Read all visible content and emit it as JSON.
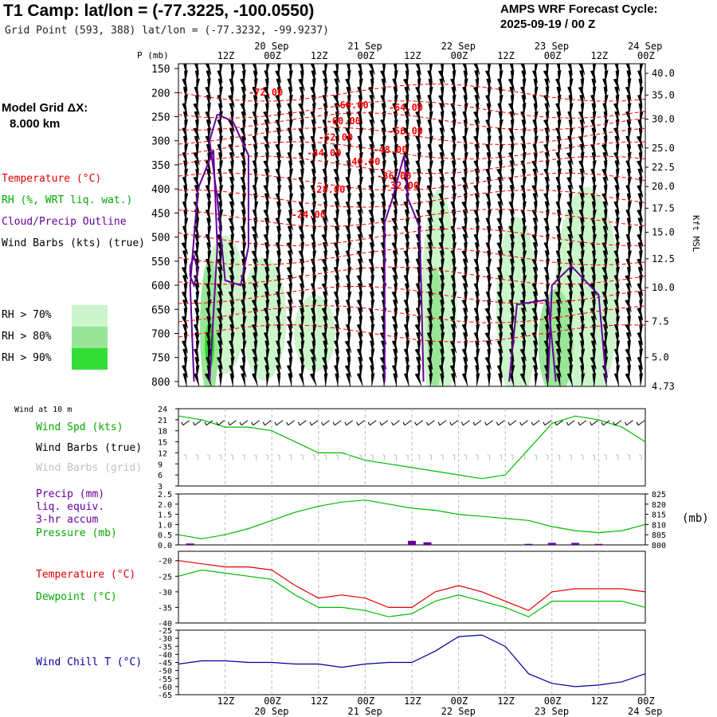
{
  "header": {
    "title": "T1 Camp:  lat/lon = (-77.3225, -100.0550)",
    "subtitle": "Grid Point (593, 388) lat/lon = (-77.3232, -99.9237)",
    "cycle_title": "AMPS WRF Forecast Cycle:",
    "cycle_value": "2025-09-19 / 00  Z"
  },
  "model_grid": {
    "label": "Model Grid ΔX:",
    "value": "8.000 km"
  },
  "legend": {
    "temperature": "Temperature (°C)",
    "rh": "RH (%, WRT liq. wat.)",
    "cloud": "Cloud/Precip Outline",
    "barbs": "Wind Barbs (kts) (true)",
    "rh70": "RH > 70%",
    "rh80": "RH > 80%",
    "rh90": "RH > 90%"
  },
  "colors": {
    "temperature": "#ff0000",
    "rh": "#00bb00",
    "cloud": "#660099",
    "wind_chill": "#000099",
    "grid": "#bbbbbb",
    "rh70": "#ccf5cc",
    "rh80": "#99e699",
    "rh90": "#33dd33"
  },
  "chart_data": [
    {
      "type": "contour",
      "name": "time-height cross section",
      "ylabel": "P (mb)",
      "y2label": "Kft MSL",
      "p_ticks": [
        150,
        200,
        250,
        300,
        350,
        400,
        450,
        500,
        550,
        600,
        650,
        700,
        750,
        800
      ],
      "height_ticks": [
        {
          "label": "40.0",
          "p": 160
        },
        {
          "label": "35.0",
          "p": 205
        },
        {
          "label": "30.0",
          "p": 255
        },
        {
          "label": "25.0",
          "p": 315
        },
        {
          "label": "22.5",
          "p": 355
        },
        {
          "label": "20.0",
          "p": 395
        },
        {
          "label": "17.5",
          "p": 440
        },
        {
          "label": "15.0",
          "p": 490
        },
        {
          "label": "12.5",
          "p": 545
        },
        {
          "label": "10.0",
          "p": 605
        },
        {
          "label": "7.5",
          "p": 675
        },
        {
          "label": "5.0",
          "p": 750
        }
      ],
      "surface_height_label": "4.73",
      "temperature_contours": [
        {
          "label": "-72.00",
          "hour": 18,
          "p": 206
        },
        {
          "label": "-68.00",
          "hour": 40,
          "p": 233
        },
        {
          "label": "-64.00",
          "hour": 54,
          "p": 238
        },
        {
          "label": "-60.00",
          "hour": 38,
          "p": 266
        },
        {
          "label": "-56.00",
          "hour": 54,
          "p": 286
        },
        {
          "label": "-52.00",
          "hour": 36,
          "p": 300
        },
        {
          "label": "-48.00",
          "hour": 50,
          "p": 325
        },
        {
          "label": "-44.00",
          "hour": 33,
          "p": 332
        },
        {
          "label": "-40.00",
          "hour": 43,
          "p": 350
        },
        {
          "label": "-36.00",
          "hour": 51,
          "p": 380
        },
        {
          "label": "-32.00",
          "hour": 53,
          "p": 400
        },
        {
          "label": "-28.00",
          "hour": 34,
          "p": 408
        },
        {
          "label": "-24.00",
          "hour": 29,
          "p": 460
        }
      ]
    },
    {
      "type": "line",
      "name": "Wind at 10 m",
      "title": "Wind at 10 m",
      "legend": [
        "Wind Spd (kts)",
        "Wind Barbs (true)",
        "Wind Barbs (grid)"
      ],
      "ylim": [
        3,
        24
      ],
      "yticks": [
        3,
        6,
        9,
        12,
        15,
        18,
        21,
        24
      ],
      "hours": [
        0,
        6,
        12,
        18,
        24,
        30,
        36,
        42,
        48,
        54,
        60,
        66,
        72,
        78,
        84,
        90,
        96,
        102,
        108,
        114,
        120
      ],
      "values": [
        22,
        21,
        19,
        19,
        18,
        15,
        12,
        12,
        10,
        9,
        8,
        7,
        6,
        5,
        6,
        13,
        20,
        22,
        21,
        19,
        15
      ]
    },
    {
      "type": "line",
      "name": "Precip and Pressure",
      "legend": [
        "Precip (mm)",
        "liq. equiv.",
        "3-hr accum",
        "Pressure (mb)"
      ],
      "ylim": [
        0,
        2.5
      ],
      "yticks": [
        "0.0",
        "0.5",
        "1.0",
        "1.5",
        "2.0",
        "2.5"
      ],
      "y2lim": [
        800,
        825
      ],
      "y2ticks": [
        800,
        805,
        810,
        815,
        820,
        825
      ],
      "y2label": "(mb)",
      "hours": [
        0,
        6,
        12,
        18,
        24,
        30,
        36,
        42,
        48,
        54,
        60,
        66,
        72,
        78,
        84,
        90,
        96,
        102,
        108,
        114,
        120
      ],
      "pressure": [
        805,
        803,
        805,
        808,
        812,
        816,
        819,
        821,
        822,
        820,
        818,
        817,
        815,
        814,
        813,
        812,
        809,
        807,
        806,
        807,
        810
      ],
      "precip_bars": [
        {
          "hour": 3,
          "value": 0.07
        },
        {
          "hour": 60,
          "value": 0.2
        },
        {
          "hour": 64,
          "value": 0.13
        },
        {
          "hour": 90,
          "value": 0.05
        },
        {
          "hour": 96,
          "value": 0.1
        },
        {
          "hour": 102,
          "value": 0.1
        },
        {
          "hour": 108,
          "value": 0.05
        }
      ]
    },
    {
      "type": "line",
      "name": "Temperature and Dewpoint",
      "legend": [
        "Temperature (°C)",
        "Dewpoint (°C)"
      ],
      "ylim": [
        -40,
        -17
      ],
      "yticks": [
        -20,
        -25,
        -30,
        -35,
        -40
      ],
      "hours": [
        0,
        6,
        12,
        18,
        24,
        30,
        36,
        42,
        48,
        54,
        60,
        66,
        72,
        78,
        84,
        90,
        96,
        102,
        108,
        114,
        120
      ],
      "series": [
        {
          "name": "Temperature",
          "values": [
            -20,
            -21,
            -22,
            -22,
            -23,
            -28,
            -32,
            -31,
            -32,
            -35,
            -35,
            -30,
            -28,
            -30,
            -33,
            -36,
            -30,
            -29,
            -29,
            -29,
            -30
          ]
        },
        {
          "name": "Dewpoint",
          "values": [
            -25,
            -23,
            -24,
            -25,
            -26,
            -31,
            -35,
            -35,
            -36,
            -38,
            -37,
            -33,
            -31,
            -33,
            -35,
            -38,
            -33,
            -33,
            -33,
            -33,
            -35
          ]
        }
      ]
    },
    {
      "type": "line",
      "name": "Wind Chill",
      "legend": [
        "Wind Chill T (°C)"
      ],
      "ylim": [
        -65,
        -25
      ],
      "yticks": [
        -25,
        -30,
        -35,
        -40,
        -45,
        -50,
        -55,
        -60,
        -65
      ],
      "hours": [
        0,
        6,
        12,
        18,
        24,
        30,
        36,
        42,
        48,
        54,
        60,
        66,
        72,
        78,
        84,
        90,
        96,
        102,
        108,
        114,
        120
      ],
      "values": [
        -46,
        -44,
        -44,
        -45,
        -45,
        -46,
        -46,
        -48,
        -46,
        -45,
        -45,
        -38,
        -29,
        -28,
        -35,
        -52,
        -58,
        -60,
        -59,
        -57,
        -52
      ]
    }
  ],
  "time_axis": {
    "hours_per_day": 24,
    "hour_labels": [
      {
        "hour": 12,
        "label": "12Z"
      },
      {
        "hour": 24,
        "label": "00Z"
      },
      {
        "hour": 36,
        "label": "12Z"
      },
      {
        "hour": 48,
        "label": "00Z"
      },
      {
        "hour": 60,
        "label": "12Z"
      },
      {
        "hour": 72,
        "label": "00Z"
      },
      {
        "hour": 84,
        "label": "12Z"
      },
      {
        "hour": 96,
        "label": "00Z"
      },
      {
        "hour": 108,
        "label": "12Z"
      },
      {
        "hour": 120,
        "label": "00Z"
      }
    ],
    "date_labels": [
      {
        "hour": 24,
        "label": "20 Sep"
      },
      {
        "hour": 48,
        "label": "21 Sep"
      },
      {
        "hour": 72,
        "label": "22 Sep"
      },
      {
        "hour": 96,
        "label": "23 Sep"
      },
      {
        "hour": 120,
        "label": "24 Sep"
      }
    ]
  }
}
